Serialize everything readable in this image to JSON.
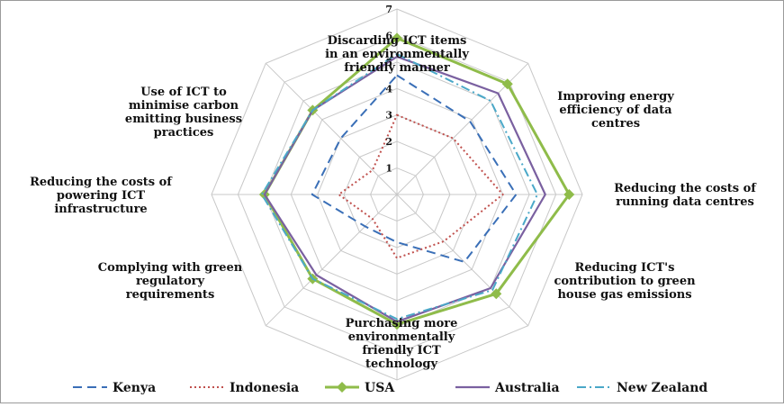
{
  "chart_data": {
    "type": "radar",
    "title": "",
    "axes": [
      "Discarding ICT items in an environmentally friendly manner",
      "Improving energy efficiency of data centres",
      "Reducing the costs of running data centres",
      "Reducing ICT's contribution to green house gas emissions",
      "Purchasing more environmentally friendly ICT technology",
      "Complying with green regulatory requirements",
      "Reducing the costs of powering ICT infrastructure",
      "Use of ICT to minimise carbon emitting business practices"
    ],
    "axis_label_lines": [
      [
        "Discarding ICT items",
        "in an environmentally",
        "friendly manner"
      ],
      [
        "Improving energy",
        "efficiency of data",
        "centres"
      ],
      [
        "Reducing the costs of",
        "running data centres"
      ],
      [
        "Reducing ICT's",
        "contribution to green",
        "house gas emissions"
      ],
      [
        "Purchasing more",
        "environmentally",
        "friendly ICT",
        "technology"
      ],
      [
        "Complying with green",
        "regulatory",
        "requirements"
      ],
      [
        "Reducing the costs of",
        "powering ICT",
        "infrastructure"
      ],
      [
        "Use of ICT to",
        "minimise carbon",
        "emitting business",
        "practices"
      ]
    ],
    "rlim": [
      0,
      7
    ],
    "ticks": [
      "1",
      "2",
      "3",
      "4",
      "5",
      "6",
      "7"
    ],
    "grid": true,
    "legend_position": "bottom",
    "series": [
      {
        "name": "Kenya",
        "values": [
          4.5,
          3.9,
          4.5,
          3.6,
          1.8,
          1.7,
          3.2,
          3.0
        ],
        "color": "#3a6fb7",
        "style": "dashed"
      },
      {
        "name": "Indonesia",
        "values": [
          3.0,
          3.0,
          4.0,
          2.5,
          2.4,
          1.3,
          2.2,
          1.3
        ],
        "color": "#c0504d",
        "style": "dotted"
      },
      {
        "name": "USA",
        "values": [
          5.9,
          5.9,
          6.5,
          5.3,
          4.9,
          4.5,
          5.0,
          4.5
        ],
        "color": "#8fbc4a",
        "style": "solid-diamond"
      },
      {
        "name": "Australia",
        "values": [
          5.2,
          5.4,
          5.6,
          5.0,
          4.8,
          4.3,
          5.0,
          4.5
        ],
        "color": "#7a60a0",
        "style": "solid"
      },
      {
        "name": "New Zealand",
        "values": [
          5.3,
          5.0,
          5.3,
          5.1,
          4.7,
          4.5,
          5.1,
          4.5
        ],
        "color": "#4aa8c8",
        "style": "dash-dot"
      }
    ]
  }
}
